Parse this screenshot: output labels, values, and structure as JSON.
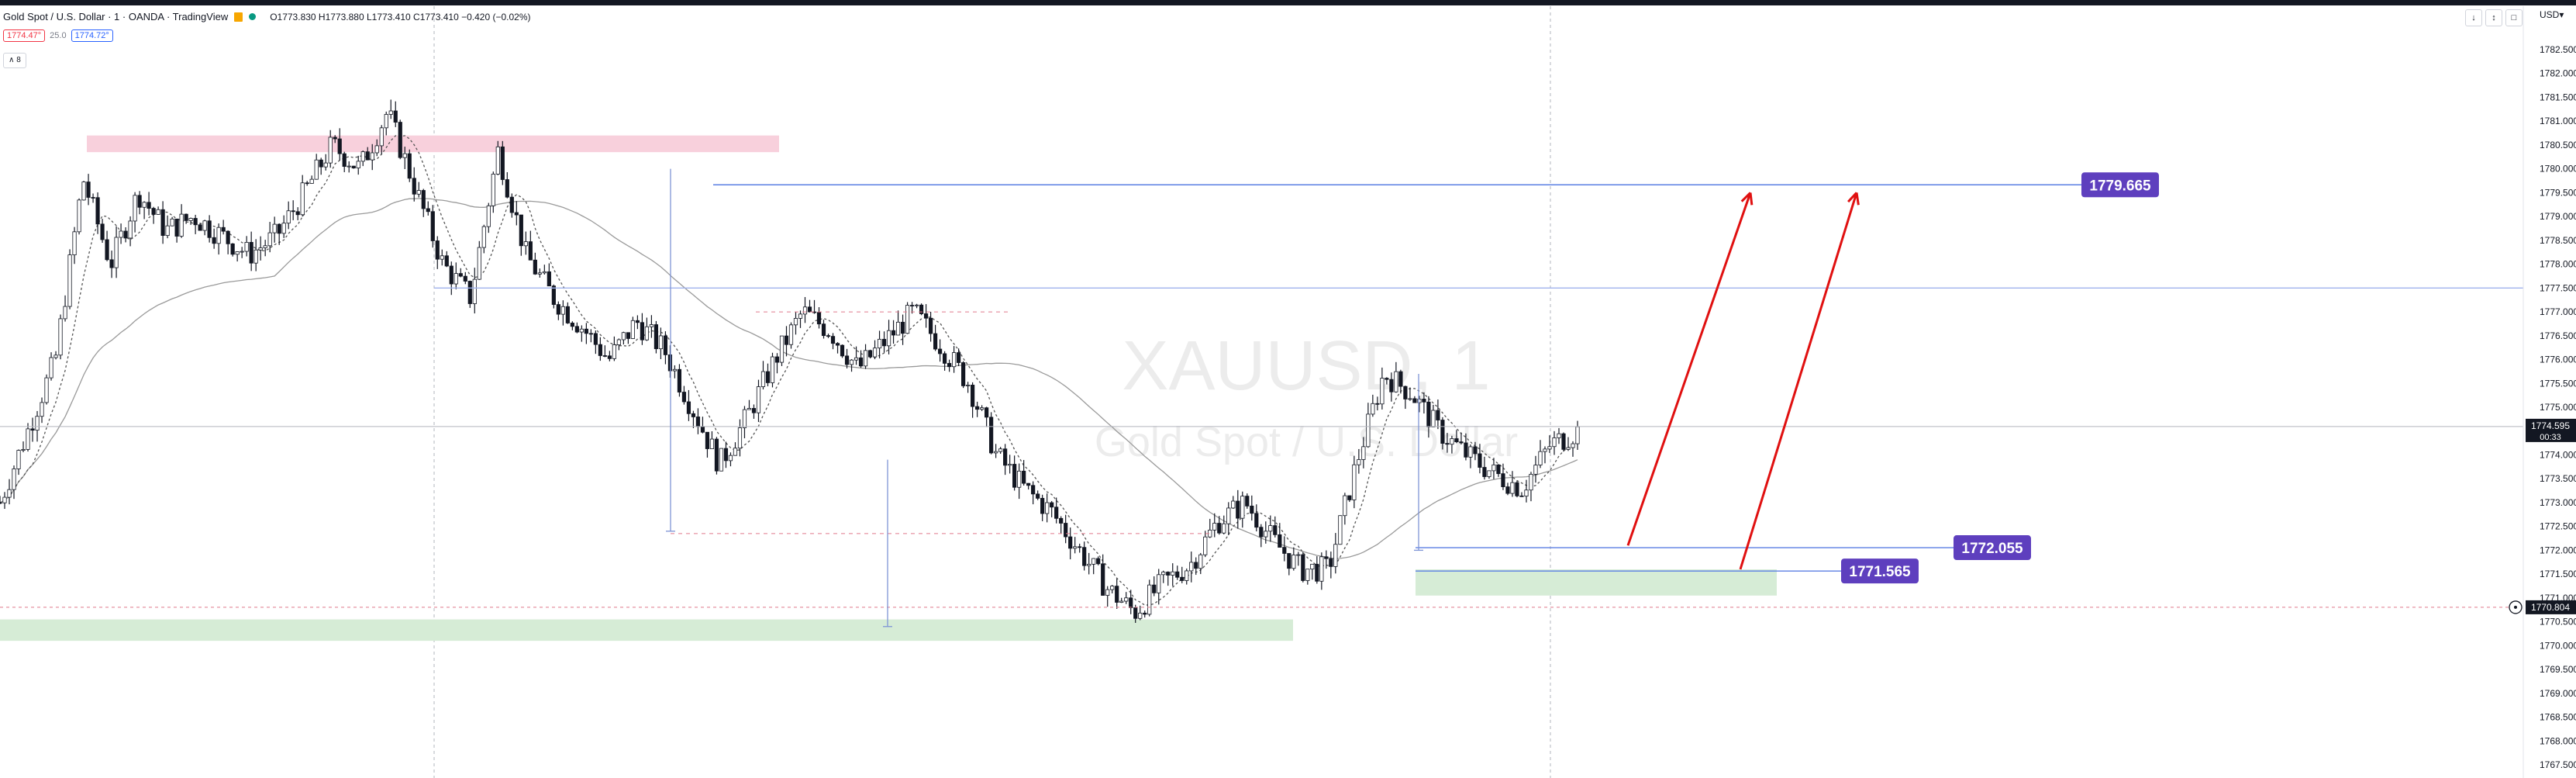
{
  "header": {
    "title": "Gold Spot / U.S. Dollar · 1 · OANDA · TradingView",
    "ohlc": "O1773.830 H1773.880 L1773.410 C1773.410 −0.420 (−0.02%)",
    "sell_price": "1774.47°",
    "spread": "25.0",
    "buy_price": "1774.72°",
    "collapse_label": "∧ 8"
  },
  "toolbar": {
    "down_icon": "arrow-down-icon",
    "expand_icon": "expand-icon",
    "fullscreen_icon": "fullscreen-icon",
    "currency": "USD▾"
  },
  "watermark": {
    "symbol": "XAUUSD, 1",
    "description": "Gold Spot / U.S. Dollar"
  },
  "colors": {
    "up": "#131722",
    "down": "#131722",
    "red_zone": "#f8d0dc",
    "green_zone": "#d6ecd6",
    "blue_line": "#5b7fe3",
    "label_bg": "#5e3fbe",
    "arrow": "#e01010",
    "ma": "#9a9a9a"
  },
  "chart_data": {
    "type": "candlestick",
    "symbol": "XAUUSD",
    "timeframe": "1",
    "ylim": [
      1767.5,
      1783.0
    ],
    "y_ticks": [
      "1782.500",
      "1782.000",
      "1781.500",
      "1781.000",
      "1780.500",
      "1780.000",
      "1779.500",
      "1779.000",
      "1778.500",
      "1778.000",
      "1777.500",
      "1777.000",
      "1776.500",
      "1776.000",
      "1775.500",
      "1775.000",
      "1774.500",
      "1774.000",
      "1773.500",
      "1773.000",
      "1772.500",
      "1772.000",
      "1771.500",
      "1771.000",
      "1770.500",
      "1770.000",
      "1769.500",
      "1769.000",
      "1768.500",
      "1768.000",
      "1767.500"
    ],
    "price_trajectory": [
      1773.0,
      1774.5,
      1776.0,
      1779.8,
      1778.0,
      1779.5,
      1778.7,
      1779.0,
      1778.6,
      1778.2,
      1778.6,
      1779.5,
      1780.5,
      1780.0,
      1781.2,
      1779.6,
      1778.0,
      1777.3,
      1780.4,
      1778.2,
      1777.3,
      1776.7,
      1776.0,
      1776.8,
      1776.2,
      1775.0,
      1773.8,
      1774.8,
      1776.0,
      1777.0,
      1776.6,
      1775.8,
      1776.4,
      1777.0,
      1776.3,
      1775.5,
      1774.0,
      1773.3,
      1772.8,
      1772.0,
      1771.2,
      1770.7,
      1771.3,
      1771.7,
      1772.6,
      1773.0,
      1772.2,
      1771.6,
      1771.6,
      1773.8,
      1775.7,
      1775.3,
      1774.5,
      1774.0,
      1773.6,
      1773.3,
      1774.2,
      1774.5
    ],
    "current_price": "1774.595",
    "countdown": "00:33",
    "crosshair_price": "1770.804",
    "price_labels": [
      {
        "text": "1779.665",
        "price": 1779.665
      },
      {
        "text": "1772.055",
        "price": 1772.055
      },
      {
        "text": "1771.565",
        "price": 1771.565
      }
    ],
    "zones": [
      {
        "kind": "resistance",
        "top": 1780.7,
        "bottom": 1780.35
      },
      {
        "kind": "support",
        "top": 1770.55,
        "bottom": 1770.1
      },
      {
        "kind": "demand",
        "top": 1771.6,
        "bottom": 1771.05
      }
    ],
    "horizontal_lines": [
      1779.665,
      1777.5,
      1774.595,
      1772.055,
      1771.565
    ],
    "forecast": "two upward arrows toward 1779.665"
  }
}
